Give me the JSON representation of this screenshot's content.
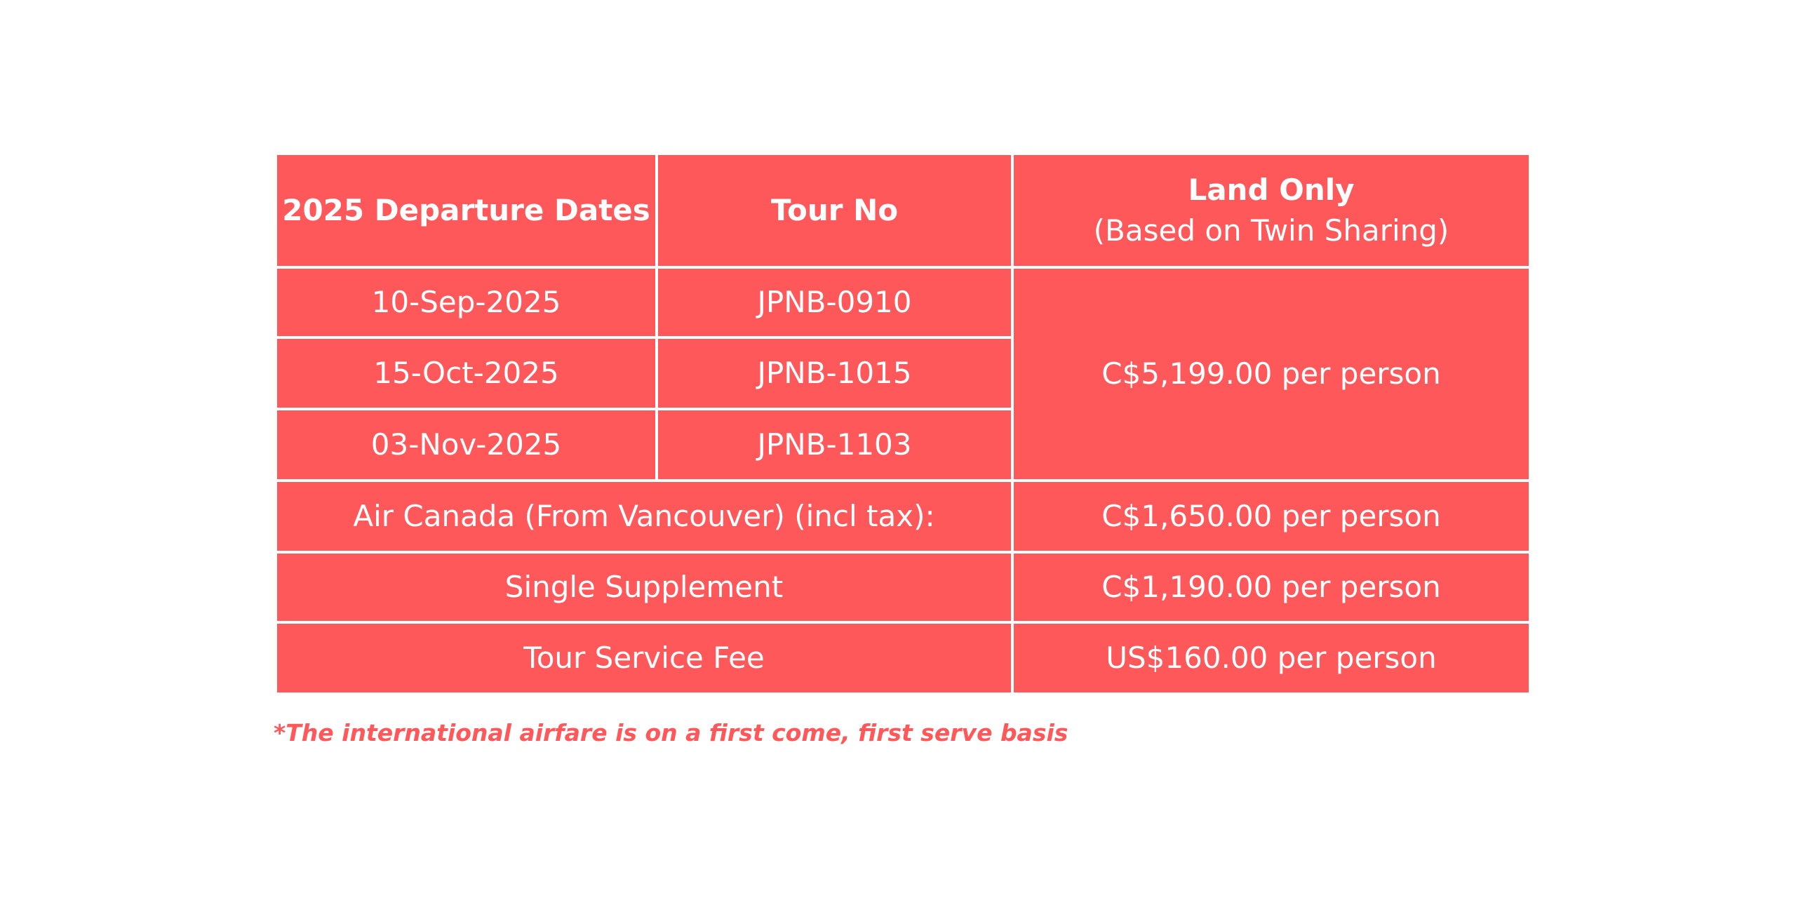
{
  "table": {
    "headers": {
      "dates": "2025 Departure Dates",
      "tour_no": "Tour No",
      "land_only_title": "Land Only",
      "land_only_subtitle": "(Based on Twin Sharing)"
    },
    "departures": [
      {
        "date": "10-Sep-2025",
        "tour_no": "JPNB-0910"
      },
      {
        "date": "15-Oct-2025",
        "tour_no": "JPNB-1015"
      },
      {
        "date": "03-Nov-2025",
        "tour_no": "JPNB-1103"
      }
    ],
    "land_only_price": "C$5,199.00 per person",
    "extras": [
      {
        "label": "Air Canada (From Vancouver) (incl tax):",
        "price": "C$1,650.00 per person"
      },
      {
        "label": "Single Supplement",
        "price": "C$1,190.00 per person"
      },
      {
        "label": "Tour Service Fee",
        "price": "US$160.00 per person"
      }
    ]
  },
  "footnote": "*The international airfare is on a first come, first serve basis",
  "colors": {
    "table_bg": "#ff585b",
    "table_text": "#ffffff",
    "border": "#ffffff",
    "footnote_text": "#ff585b"
  }
}
